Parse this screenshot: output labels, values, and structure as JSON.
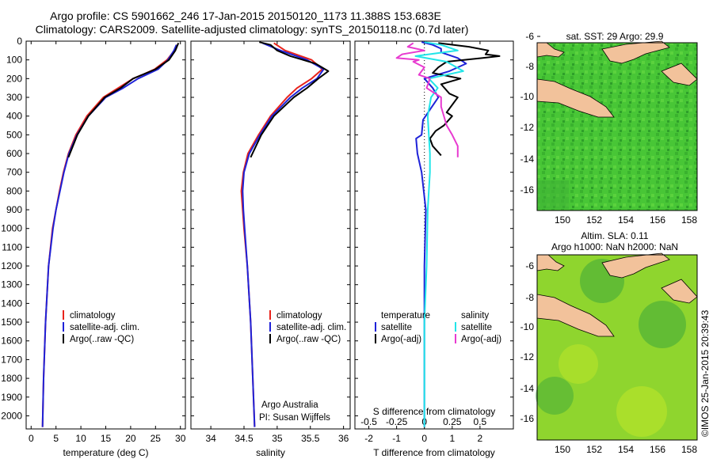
{
  "header": {
    "line1": "Argo profile: CS 5901662_246 17-Jan-2015 20150120_1173 11.388S 153.683E",
    "line2": "Climatology: CARS2009. Satellite-adjusted climatology: synTS_20150118.nc (0.7d later)"
  },
  "colors": {
    "climatology": "#e8231c",
    "satellite": "#1e22d8",
    "argo": "#000000",
    "sal_sat": "#22e5e8",
    "sal_argo": "#e83ad0",
    "land": "#f2c29b",
    "sst_green": "#48c636"
  },
  "depth_axis": {
    "ticks": [
      0,
      100,
      200,
      300,
      400,
      500,
      600,
      700,
      800,
      900,
      1000,
      1100,
      1200,
      1300,
      1400,
      1500,
      1600,
      1700,
      1800,
      1900,
      2000
    ],
    "range": [
      0,
      2070
    ]
  },
  "chart_data": [
    {
      "type": "line",
      "id": "temperature",
      "xlabel": "temperature (deg C)",
      "xlim": [
        -1,
        31
      ],
      "xticks": [
        0,
        5,
        10,
        15,
        20,
        25,
        30
      ],
      "legend": [
        "climatology",
        "satellite-adj. clim.",
        "Argo(..raw -QC)"
      ],
      "series": [
        {
          "name": "climatology",
          "depth": [
            2060,
            1800,
            1500,
            1200,
            1000,
            900,
            800,
            700,
            600,
            500,
            400,
            300,
            250,
            200,
            180,
            150,
            100,
            50,
            20
          ],
          "values": [
            2.3,
            2.5,
            2.9,
            3.5,
            4.3,
            5,
            5.7,
            6.5,
            7.5,
            9,
            11.2,
            14.5,
            17.5,
            20.5,
            22.3,
            24.8,
            27.3,
            28.8,
            29.3
          ]
        },
        {
          "name": "satellite-adj. clim.",
          "depth": [
            2060,
            1800,
            1500,
            1200,
            1000,
            900,
            800,
            700,
            600,
            500,
            400,
            300,
            250,
            200,
            150,
            100,
            50,
            20
          ],
          "values": [
            2.3,
            2.5,
            2.9,
            3.5,
            4.4,
            5,
            5.8,
            6.6,
            7.6,
            9.2,
            11.5,
            15,
            18.5,
            21.5,
            25.5,
            27.5,
            28.7,
            29.2
          ]
        },
        {
          "name": "Argo(..raw -QC)",
          "depth": [
            620,
            500,
            400,
            300,
            250,
            200,
            150,
            100,
            50,
            10
          ],
          "values": [
            7.5,
            9.3,
            11.5,
            14.8,
            18,
            20.5,
            25,
            27.7,
            29,
            29.6
          ]
        }
      ]
    },
    {
      "type": "line",
      "id": "salinity",
      "xlabel": "salinity",
      "xlim": [
        33.7,
        36.1
      ],
      "xticks": [
        34,
        34.5,
        35,
        35.5,
        36
      ],
      "legend": [
        "climatology",
        "satellite-adj. clim.",
        "Argo(..raw -QC)"
      ],
      "series": [
        {
          "name": "climatology",
          "depth": [
            2060,
            1500,
            1200,
            1000,
            900,
            800,
            700,
            600,
            500,
            400,
            300,
            250,
            200,
            150,
            100,
            50,
            10
          ],
          "values": [
            34.66,
            34.6,
            34.55,
            34.5,
            34.48,
            34.46,
            34.49,
            34.56,
            34.72,
            34.9,
            35.15,
            35.3,
            35.52,
            35.68,
            35.52,
            35.12,
            34.95
          ]
        },
        {
          "name": "satellite-adj. clim.",
          "depth": [
            2060,
            1500,
            1200,
            1000,
            900,
            800,
            700,
            600,
            500,
            400,
            300,
            250,
            200,
            150,
            100,
            50,
            10
          ],
          "values": [
            34.66,
            34.6,
            34.55,
            34.51,
            34.49,
            34.48,
            34.5,
            34.58,
            34.74,
            34.92,
            35.2,
            35.38,
            35.6,
            35.7,
            35.45,
            35.05,
            34.78
          ]
        },
        {
          "name": "Argo(..raw -QC)",
          "depth": [
            620,
            500,
            400,
            300,
            250,
            200,
            160,
            120,
            80,
            50,
            20,
            5
          ],
          "values": [
            34.6,
            34.76,
            34.95,
            35.25,
            35.45,
            35.62,
            35.77,
            35.58,
            35.2,
            35.0,
            34.9,
            34.73
          ]
        }
      ]
    },
    {
      "type": "line",
      "id": "difference",
      "xlabel": "T difference from climatology",
      "x2label": "S difference from climatology",
      "xlim": [
        -2.5,
        3.2
      ],
      "xticks": [
        -2,
        -1,
        0,
        1,
        2
      ],
      "xticklabels": [
        "-2",
        "-1",
        "0",
        "1",
        "2"
      ],
      "x2ticks": [
        -0.5,
        -0.25,
        0,
        0.25,
        0.5
      ],
      "x2ticklabels": [
        "-0.5",
        "-0.25",
        "0",
        "0.25",
        "0.5"
      ],
      "legend_t": [
        "temperature",
        "satellite",
        "Argo(-adj)"
      ],
      "legend_s": [
        "salinity",
        "satellite",
        "Argo(-adj)"
      ],
      "series": [
        {
          "name": "T satellite",
          "depth": [
            2060,
            1500,
            1200,
            900,
            700,
            600,
            520,
            500,
            420,
            300,
            250,
            200,
            160,
            120,
            90,
            60,
            40,
            20,
            5
          ],
          "values": [
            0,
            0,
            0,
            0.05,
            -0.1,
            -0.25,
            -0.3,
            -0.1,
            -0.05,
            0.5,
            0.3,
            0.0,
            0.9,
            1.5,
            1.2,
            0.6,
            0.6,
            0.3,
            -0.1
          ]
        },
        {
          "name": "T Argo(-adj)",
          "depth": [
            610,
            560,
            520,
            480,
            450,
            400,
            380,
            300,
            280,
            230,
            200,
            170,
            140,
            110,
            90,
            80,
            70,
            50,
            30,
            10
          ],
          "values": [
            0.6,
            0.3,
            0.2,
            0.4,
            0.7,
            1.0,
            0.8,
            1.2,
            0.9,
            0.6,
            1.3,
            0.3,
            0.5,
            0.8,
            2.1,
            2.7,
            2.2,
            2.3,
            1.6,
            0.5
          ]
        },
        {
          "name": "S satellite",
          "depth": [
            2060,
            1500,
            1200,
            900,
            700,
            600,
            400,
            300,
            250,
            200,
            160,
            110,
            80,
            50,
            20,
            5
          ],
          "values": [
            0.0,
            0.0,
            0.02,
            0.03,
            0.05,
            0.05,
            0.03,
            0.06,
            0.12,
            0.04,
            0.35,
            0.2,
            -0.08,
            0.3,
            0.15,
            0.0
          ]
        },
        {
          "name": "S Argo(-adj)",
          "depth": [
            620,
            560,
            500,
            450,
            350,
            300,
            250,
            200,
            180,
            140,
            110,
            100,
            90,
            70,
            50,
            30,
            10
          ],
          "values": [
            0.3,
            0.3,
            0.25,
            0.2,
            0.15,
            0.15,
            0.02,
            0.05,
            -0.05,
            0.0,
            -0.1,
            -0.05,
            -0.25,
            -0.2,
            0.0,
            -0.15,
            -0.1
          ]
        }
      ],
      "credits": [
        "Argo Australia",
        "PI: Susan Wijffels"
      ]
    }
  ],
  "maps": {
    "sst_title": "sat. SST: 29 Argo: 29.9",
    "sla_title_1": "Altim. SLA: 0.11",
    "sla_title_2": "Argo h1000: NaN h2000: NaN",
    "lat_ticks": [
      "-6",
      "-8",
      "-10",
      "-12",
      "-14",
      "-16"
    ],
    "lon_ticks": [
      "150",
      "152",
      "154",
      "156",
      "158"
    ],
    "watermark": "©IMOS 25-Jan-2015 20:39:43"
  }
}
